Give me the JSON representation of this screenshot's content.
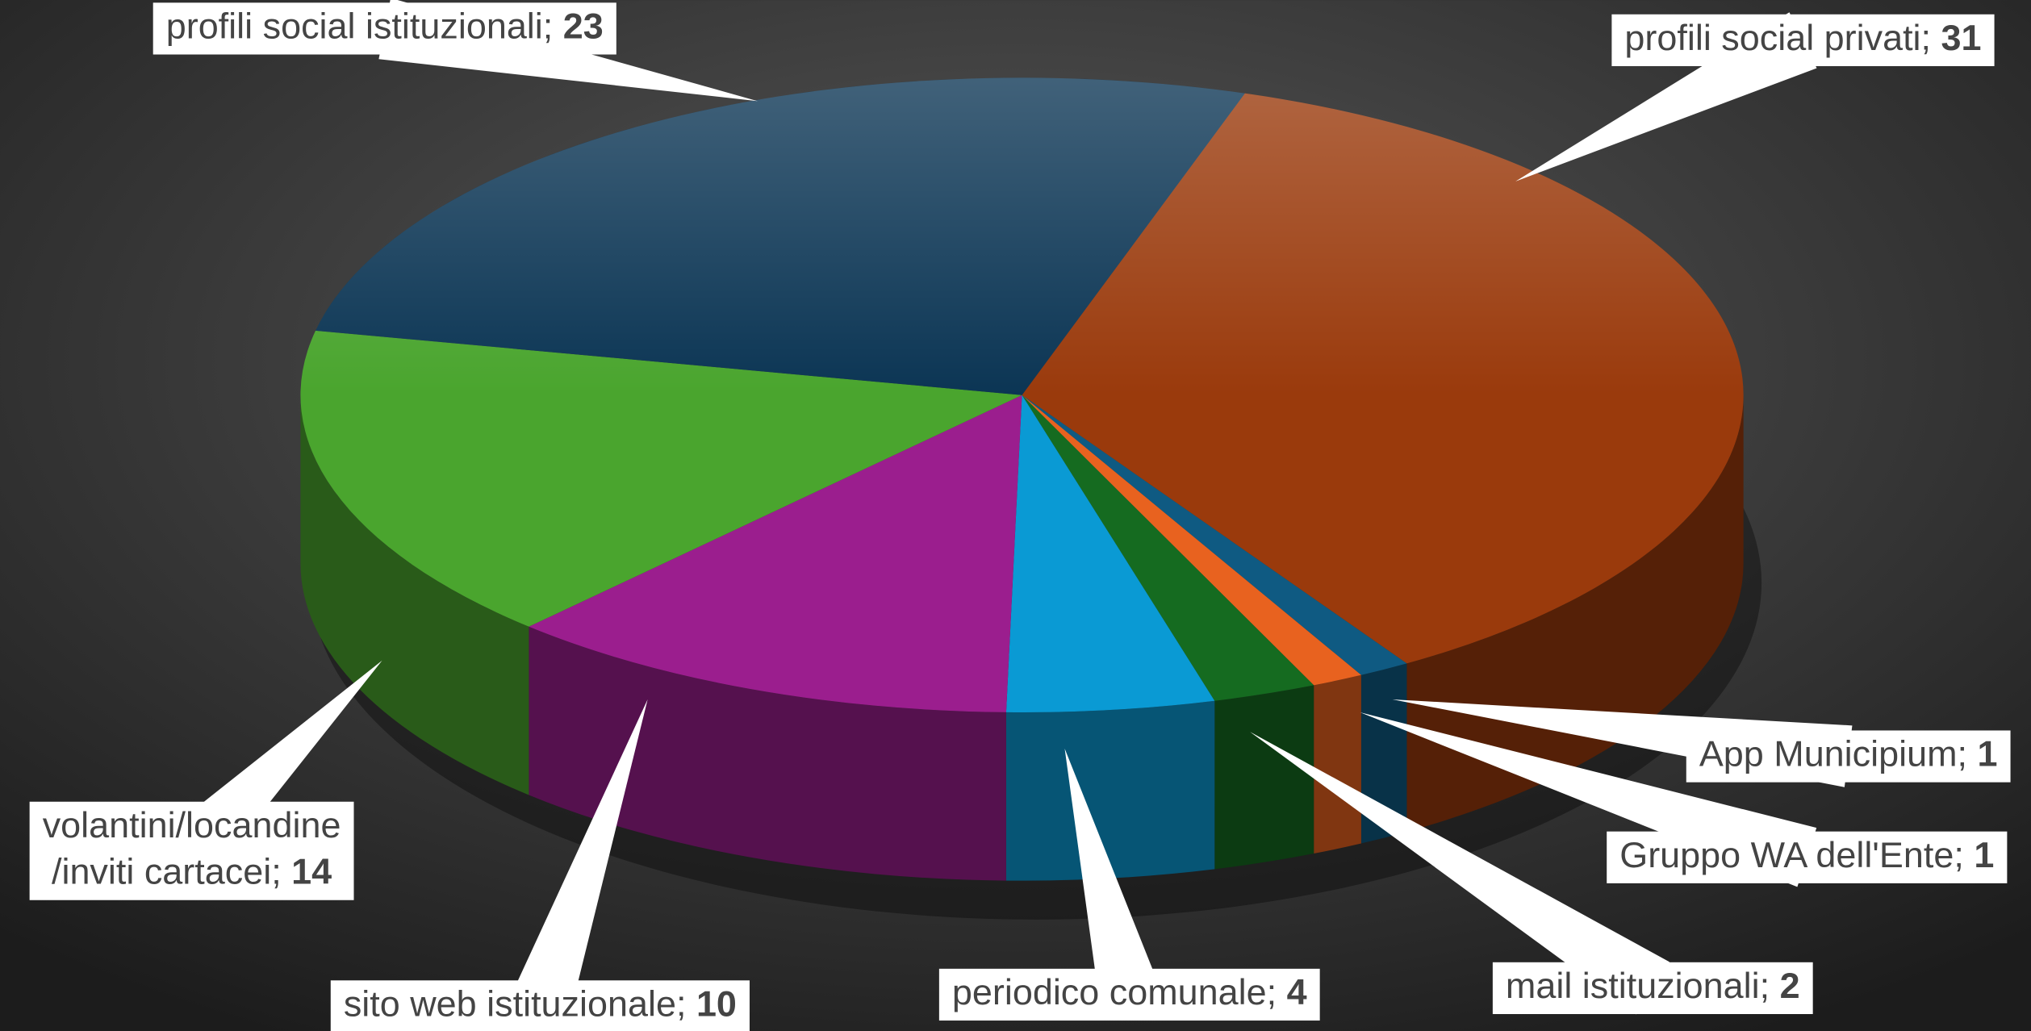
{
  "chart_data": {
    "type": "pie3d",
    "categories": [
      "profili social privati",
      "App Municipium",
      "Gruppo WA dell'Ente",
      "mail istituzionali",
      "periodico comunale",
      "sito web istituzionale",
      "volantini/locandine/inviti cartacei",
      "profili social istituzionali"
    ],
    "values": [
      31,
      1,
      1,
      2,
      4,
      10,
      14,
      23
    ],
    "colors": [
      "#9a3a0c",
      "#0f5a82",
      "#e8621f",
      "#156b20",
      "#0a9ad4",
      "#9b1e8e",
      "#4aa52e",
      "#0b3554"
    ]
  }
}
